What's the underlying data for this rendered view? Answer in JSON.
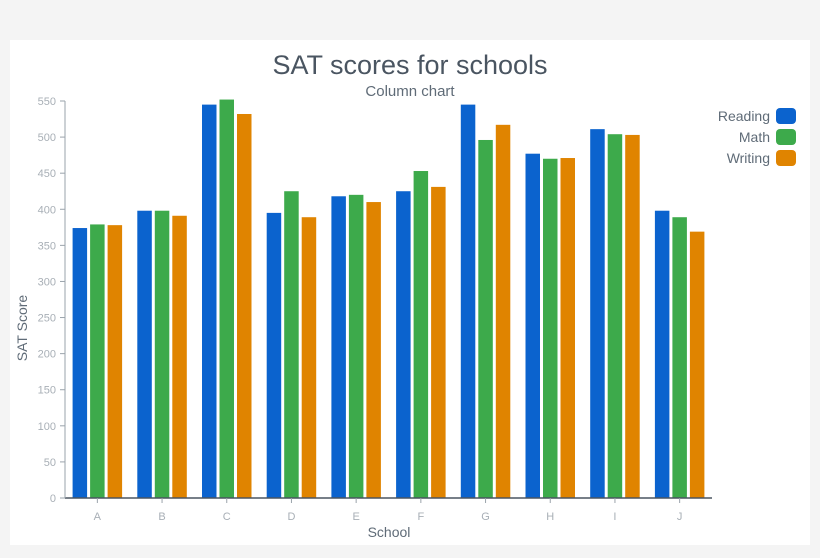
{
  "chart_data": {
    "type": "bar",
    "title": "SAT scores for schools",
    "subtitle": "Column chart",
    "xlabel": "School",
    "ylabel": "SAT Score",
    "ylim": [
      0,
      550
    ],
    "yticks": [
      0,
      50,
      100,
      150,
      200,
      250,
      300,
      350,
      400,
      450,
      500,
      550
    ],
    "grid": false,
    "legend_position": "top-right",
    "categories": [
      "A",
      "B",
      "C",
      "D",
      "E",
      "F",
      "G",
      "H",
      "I",
      "J"
    ],
    "series": [
      {
        "name": "Reading",
        "color": "#0b63ce",
        "values": [
          374,
          398,
          545,
          395,
          418,
          425,
          545,
          477,
          511,
          398
        ]
      },
      {
        "name": "Math",
        "color": "#3daa4b",
        "values": [
          379,
          398,
          552,
          425,
          420,
          453,
          496,
          470,
          504,
          389
        ]
      },
      {
        "name": "Writing",
        "color": "#e08400",
        "values": [
          378,
          391,
          532,
          389,
          410,
          431,
          517,
          471,
          503,
          369
        ]
      }
    ]
  }
}
